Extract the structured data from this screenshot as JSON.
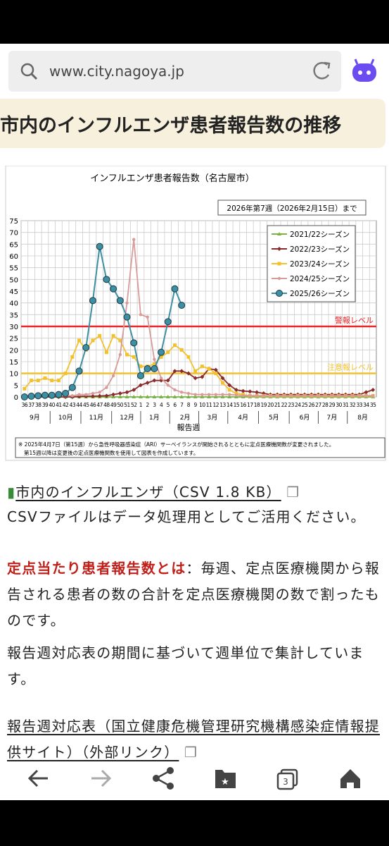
{
  "browser": {
    "url": "www.city.nagoya.jp"
  },
  "heading": "市内のインフルエンザ患者報告数の推移",
  "chart_data": {
    "type": "line",
    "title": "インフルエンザ患者報告数（名古屋市）",
    "annotation": "2026年第7週（2026年2月15日）まで",
    "x_label": "報告週",
    "categories": [
      "36",
      "37",
      "38",
      "39",
      "40",
      "41",
      "42",
      "43",
      "44",
      "45",
      "46",
      "47",
      "48",
      "49",
      "50",
      "51",
      "52",
      "1",
      "2",
      "3",
      "4",
      "5",
      "6",
      "7",
      "8",
      "9",
      "10",
      "11",
      "12",
      "13",
      "14",
      "15",
      "16",
      "17",
      "18",
      "19",
      "20",
      "21",
      "22",
      "23",
      "24",
      "25",
      "26",
      "27",
      "28",
      "29",
      "30",
      "31",
      "32",
      "33",
      "34",
      "35"
    ],
    "month_labels": [
      "9月",
      "10月",
      "11月",
      "12月",
      "1月",
      "2月",
      "3月",
      "4月",
      "5月",
      "6月",
      "7月",
      "8月"
    ],
    "ylim": [
      0,
      75
    ],
    "yticks": [
      0,
      5,
      10,
      15,
      20,
      25,
      30,
      35,
      40,
      45,
      50,
      55,
      60,
      65,
      70,
      75
    ],
    "grid": true,
    "legend": "upper right",
    "reference_lines": [
      {
        "value": 30,
        "label": "警報レベル",
        "color": "#e8262a"
      },
      {
        "value": 10,
        "label": "注意報レベル",
        "color": "#f2c12e"
      }
    ],
    "series": [
      {
        "name": "2021/22シーズン",
        "color": "#7cb342",
        "marker": "triangle",
        "values": [
          0,
          0,
          0,
          0,
          0,
          0,
          0,
          0,
          0,
          0,
          0,
          0,
          0,
          0,
          0,
          0,
          0,
          0,
          0,
          0,
          0,
          0,
          0,
          0,
          0,
          0,
          0,
          0,
          0,
          0,
          0,
          0,
          0,
          0,
          0,
          0,
          0,
          0,
          0,
          0,
          0,
          0,
          0,
          0,
          0,
          0,
          0,
          0,
          0,
          0,
          0,
          0
        ]
      },
      {
        "name": "2022/23シーズン",
        "color": "#8b2a2a",
        "marker": "diamond",
        "values": [
          0,
          0,
          0,
          0,
          0,
          0,
          0,
          0,
          0.2,
          0.3,
          0.3,
          0.4,
          0.5,
          1,
          1.5,
          2,
          3,
          5,
          6,
          7,
          7,
          7,
          11,
          11,
          10,
          8,
          8.5,
          12,
          11.5,
          8,
          5,
          3,
          2.5,
          2.3,
          2,
          1.5,
          1,
          1,
          1,
          1,
          1,
          1,
          1,
          1,
          1,
          1,
          1,
          1,
          1,
          1,
          2,
          3
        ]
      },
      {
        "name": "2023/24シーズン",
        "color": "#f2c12e",
        "marker": "square",
        "values": [
          3.5,
          7,
          7,
          8,
          7,
          7,
          10,
          17,
          24,
          20,
          24,
          26,
          19,
          26,
          24,
          18,
          17,
          13,
          13,
          14,
          17,
          19,
          22,
          20,
          17,
          11,
          13,
          12,
          10,
          6,
          3,
          1.5,
          1,
          0.5,
          0.5,
          0.5,
          0.5,
          0.5,
          0.5,
          0.5,
          0.5,
          0.5,
          0.5,
          0.5,
          0.5,
          0.5,
          0.5,
          0.5,
          0.5,
          0.5,
          0.5,
          0.5
        ]
      },
      {
        "name": "2024/25シーズン",
        "color": "#d99a9a",
        "marker": "circle",
        "values": [
          0.5,
          0.5,
          0.5,
          0.5,
          0.5,
          0.5,
          0.5,
          0.5,
          1,
          1,
          1.5,
          2,
          4,
          9,
          18,
          40,
          67,
          35,
          34,
          16,
          8,
          5,
          3,
          2,
          1.5,
          1,
          1,
          1,
          1,
          1,
          1,
          0.8,
          0.5,
          0.5,
          0.5,
          0.5,
          0.5,
          0.5,
          0.5,
          0.5,
          0.5,
          0.5,
          0.5,
          0.5,
          0.5,
          0.5,
          0.5,
          0.5,
          0.5,
          0.5,
          0.5,
          0.5
        ]
      },
      {
        "name": "2025/26シーズン",
        "color": "#3d8fa3",
        "marker": "big-circle",
        "values": [
          0,
          0.3,
          0.5,
          0.7,
          0.7,
          1,
          1.5,
          4,
          11,
          21,
          41,
          64,
          50,
          46,
          41,
          34,
          23,
          9,
          12,
          12,
          19,
          32,
          46,
          39,
          null,
          null,
          null,
          null,
          null,
          null,
          null,
          null,
          null,
          null,
          null,
          null,
          null,
          null,
          null,
          null,
          null,
          null,
          null,
          null,
          null,
          null,
          null,
          null,
          null,
          null,
          null,
          null
        ]
      }
    ],
    "footnote": [
      "※ 2025年4月7日（第15週）から急性呼吸器感染症（ARI）サーベイランスが開始されるとともに定点医療機関数が変更されました。",
      "第15週以降は変更後の定点医療機関数を使用して図表を作成しています。"
    ]
  },
  "links": {
    "csv": "市内のインフルエンザ（CSV 1.8 KB）",
    "csv_note": "CSVファイルはデータ処理用としてご活用ください。"
  },
  "definition": {
    "term": "定点当たり患者報告数とは",
    "body": "：毎週、定点医療機関から報告される患者の数の合計を定点医療機関の数で割ったものです。"
  },
  "note": "報告週対応表の期間に基づいて週単位で集計しています。",
  "external_link": "報告週対応表（国立健康危機管理研究機構感染症情報提供サイト）（外部リンク）",
  "nav": {
    "tabs_count": "3"
  }
}
